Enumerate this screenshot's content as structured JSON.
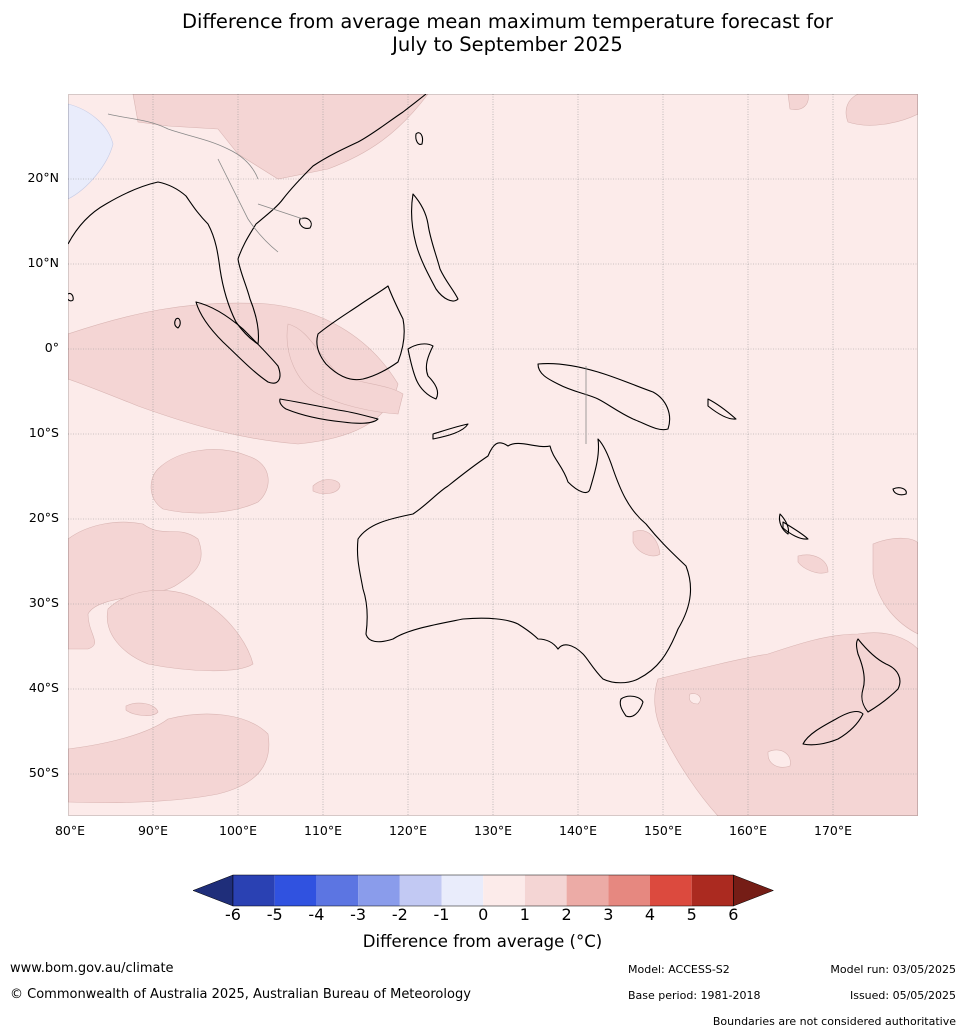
{
  "title_line1": "Difference from average mean maximum temperature forecast for",
  "title_line2": "July to September 2025",
  "lat_labels": [
    "20°N",
    "10°N",
    "0°",
    "10°S",
    "20°S",
    "30°S",
    "40°S",
    "50°S"
  ],
  "lon_labels": [
    "80°E",
    "90°E",
    "100°E",
    "110°E",
    "120°E",
    "130°E",
    "140°E",
    "150°E",
    "160°E",
    "170°E"
  ],
  "colorbar": {
    "ticks": [
      "-6",
      "-5",
      "-4",
      "-3",
      "-2",
      "-1",
      "0",
      "1",
      "2",
      "3",
      "4",
      "5",
      "6"
    ],
    "colors": [
      "#1f2e7a",
      "#2a41b3",
      "#3052e0",
      "#5c75e2",
      "#8a9ceb",
      "#c2c9f3",
      "#e9ecfb",
      "#fcebea",
      "#f4d5d4",
      "#ecaba6",
      "#e68880",
      "#dc4a3e",
      "#ab2a20",
      "#751d16"
    ],
    "label": "Difference from average (°C)"
  },
  "map_colors": {
    "base": "#fcebea",
    "warm": "#f4d5d4",
    "cool": "#e9ecfb",
    "coast": "#000000",
    "border": "#888888",
    "grid": "#9a9a9a"
  },
  "footer": {
    "url": "www.bom.gov.au/climate",
    "copyright": "© Commonwealth of Australia 2025, Australian Bureau of Meteorology",
    "model": "Model: ACCESS-S2",
    "base_period": "Base period: 1981-2018",
    "model_run": "Model run: 03/05/2025",
    "issued": "Issued: 05/05/2025",
    "boundaries": "Boundaries are not considered authoritative"
  }
}
